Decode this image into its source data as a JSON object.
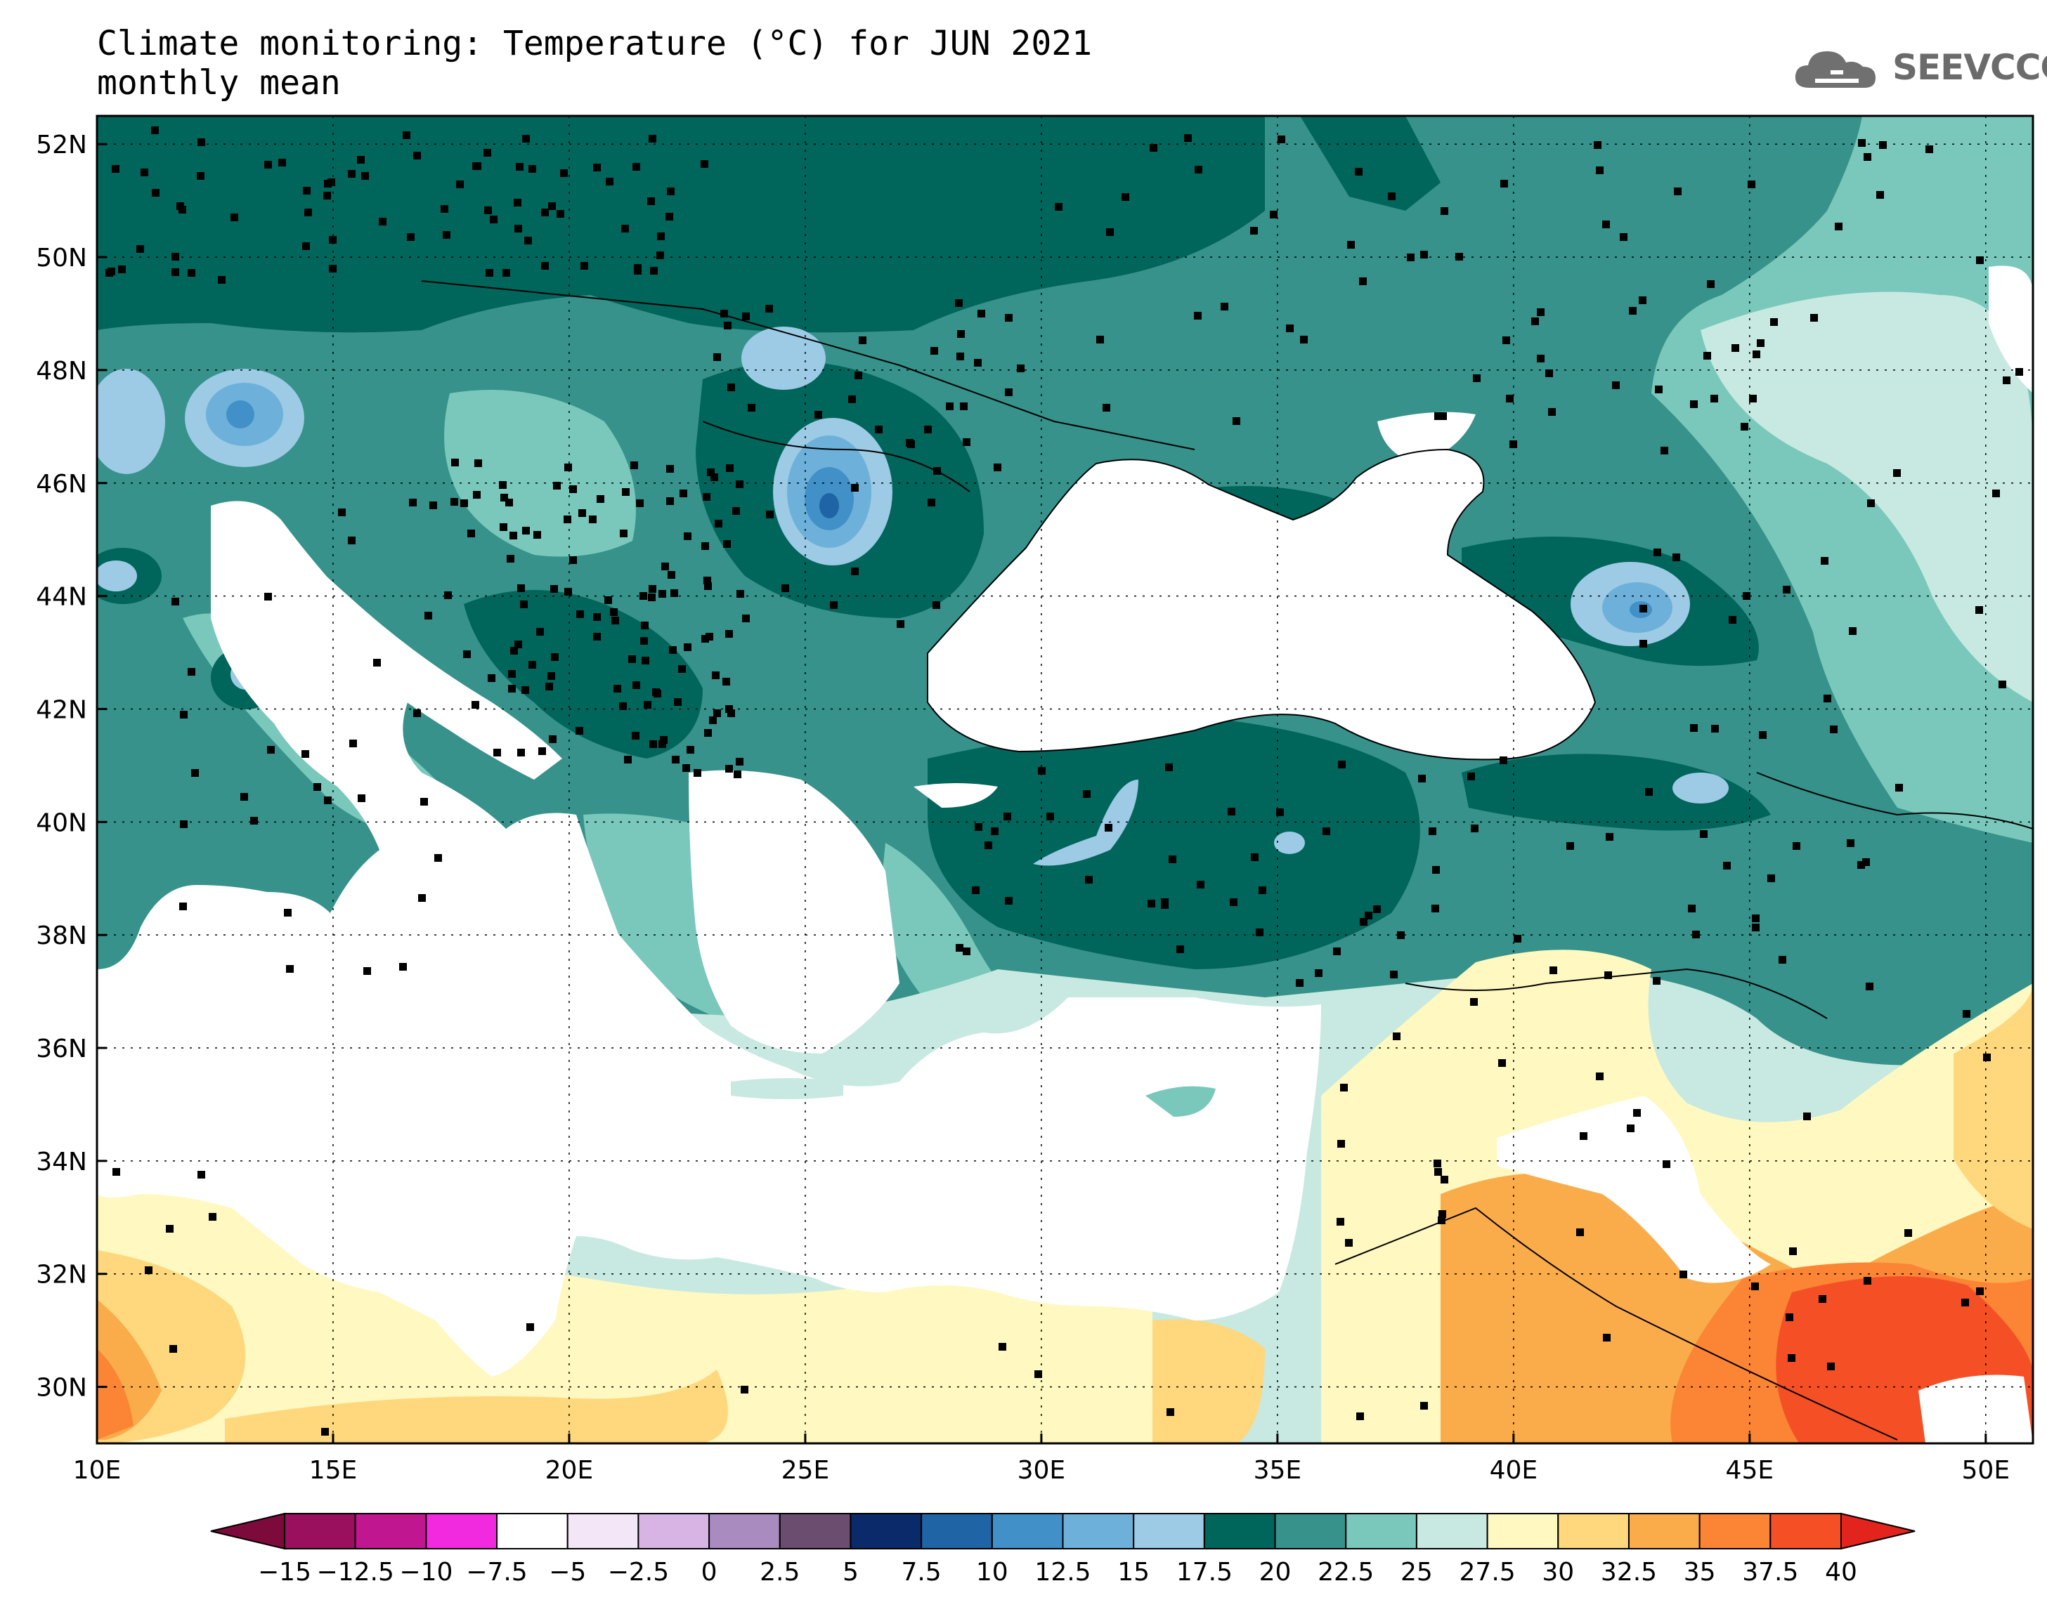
{
  "title": {
    "line1": "Climate monitoring: Temperature (°C) for JUN 2021",
    "line2": "monthly mean"
  },
  "logo": {
    "text": "SEEVCCC",
    "icon": "cloud-icon",
    "color": "#707070"
  },
  "map": {
    "lat_labels": [
      "52N",
      "50N",
      "48N",
      "46N",
      "44N",
      "42N",
      "40N",
      "38N",
      "36N",
      "34N",
      "32N",
      "30N"
    ],
    "lon_labels": [
      "10E",
      "15E",
      "20E",
      "25E",
      "30E",
      "35E",
      "40E",
      "45E",
      "50E"
    ],
    "lat_range": [
      29,
      52.5
    ],
    "lon_range": [
      10,
      51
    ],
    "grid": "dotted"
  },
  "colorbar": {
    "labels": [
      "−15",
      "−12.5",
      "−10",
      "−7.5",
      "−5",
      "−2.5",
      "0",
      "2.5",
      "5",
      "7.5",
      "10",
      "12.5",
      "15",
      "17.5",
      "20",
      "22.5",
      "25",
      "27.5",
      "30",
      "32.5",
      "35",
      "37.5",
      "40"
    ],
    "colors": [
      "#9a0f5e",
      "#c0168f",
      "#f12ae0",
      "#ffffff",
      "#f3e6f6",
      "#d8b4e4",
      "#a98bc0",
      "#6b4e6f",
      "#0b2a6a",
      "#1f64a4",
      "#4290c8",
      "#6db1da",
      "#9dcae4",
      "#00655a",
      "#36928a",
      "#79c8bb",
      "#c7e9e1",
      "#fff8c0",
      "#ffd77c",
      "#fbac4a",
      "#fb8535",
      "#f55025"
    ],
    "low_color": "#7c0b3c",
    "high_color": "#e2241d"
  }
}
